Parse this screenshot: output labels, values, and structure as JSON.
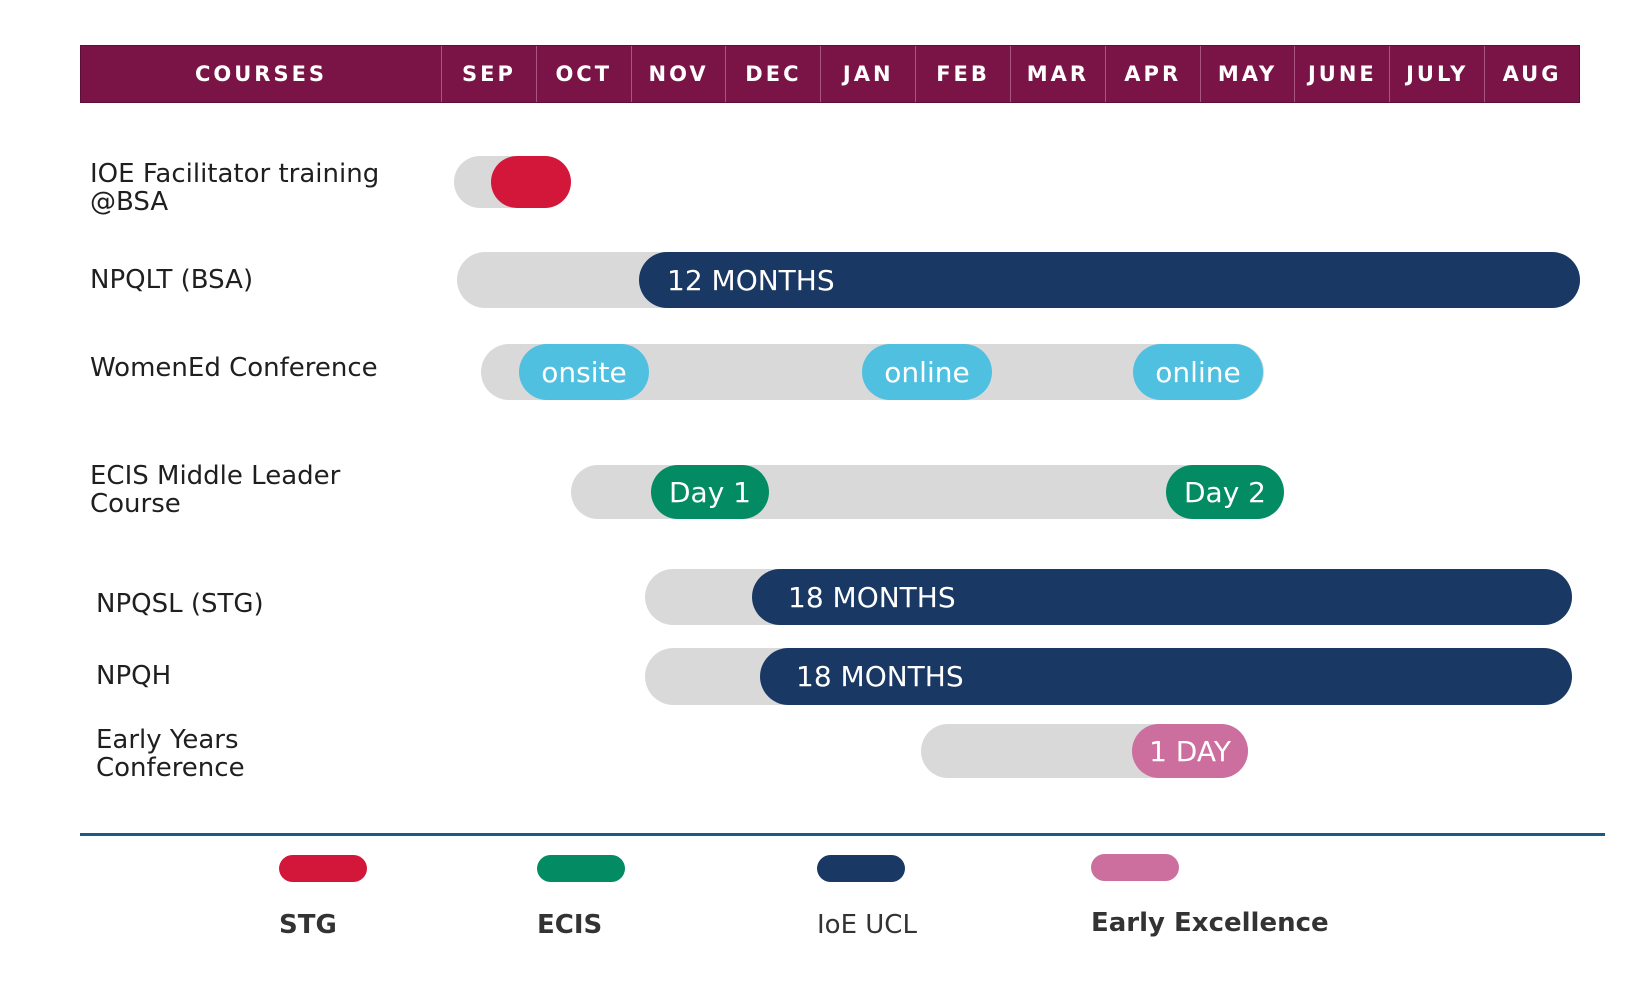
{
  "header": {
    "courses_label": "COURSES",
    "months": [
      "SEP",
      "OCT",
      "NOV",
      "DEC",
      "JAN",
      "FEB",
      "MAR",
      "APR",
      "MAY",
      "JUNE",
      "JULY",
      "AUG"
    ]
  },
  "colors": {
    "header": "#7a1446",
    "track": "#d9d9d9",
    "stg": "#d3173a",
    "ecis": "#038c63",
    "ioe_ucl": "#1a3864",
    "early_excellence": "#cc6e9e",
    "online_onsite": "#4fc0e0",
    "divider": "#1b5a86"
  },
  "courses": [
    {
      "name": "IOE Facilitator training @BSA",
      "segments": []
    },
    {
      "name": "NPQLT (BSA)",
      "segments": [
        {
          "text": "12 MONTHS",
          "provider": "ioe_ucl"
        }
      ]
    },
    {
      "name": "WomenEd Conference",
      "segments": [
        {
          "text": "onsite"
        },
        {
          "text": "online"
        },
        {
          "text": "online"
        }
      ]
    },
    {
      "name": "ECIS Middle Leader Course",
      "segments": [
        {
          "text": "Day 1",
          "provider": "ecis"
        },
        {
          "text": "Day 2",
          "provider": "ecis"
        }
      ]
    },
    {
      "name": "NPQSL (STG)",
      "segments": [
        {
          "text": "18 MONTHS",
          "provider": "ioe_ucl"
        }
      ]
    },
    {
      "name": "NPQH",
      "segments": [
        {
          "text": "18 MONTHS",
          "provider": "ioe_ucl"
        }
      ]
    },
    {
      "name": "Early Years Conference",
      "segments": [
        {
          "text": "1 DAY",
          "provider": "early_excellence"
        }
      ]
    }
  ],
  "legend": [
    {
      "label": "STG",
      "color": "#d3173a"
    },
    {
      "label": "ECIS",
      "color": "#038c63"
    },
    {
      "label": "IoE UCL",
      "color": "#1a3864"
    },
    {
      "label": "Early Excellence",
      "color": "#cc6e9e"
    }
  ]
}
